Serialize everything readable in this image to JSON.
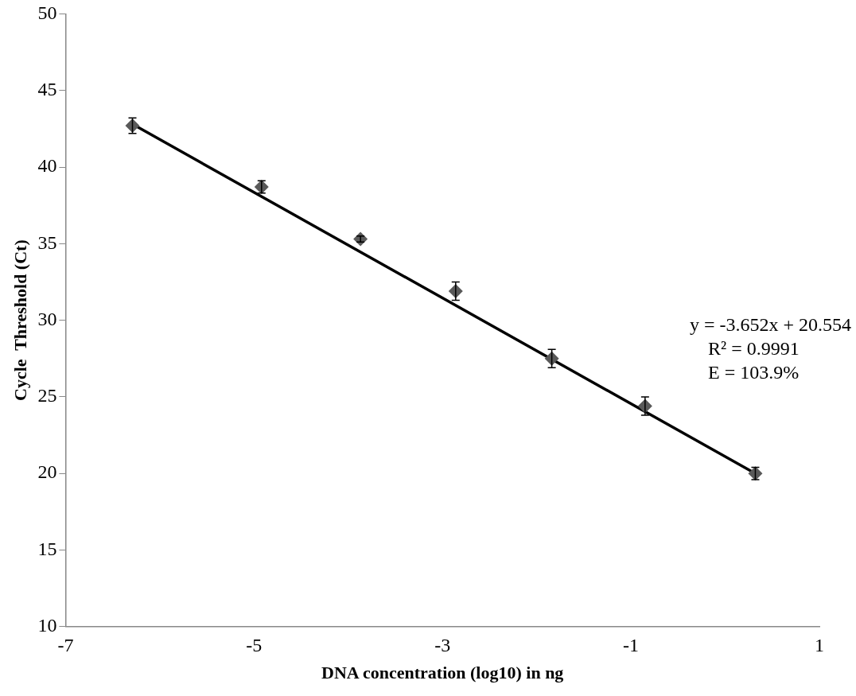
{
  "chart_data": {
    "type": "scatter",
    "xlabel": "DNA concentration (log10) in ng",
    "ylabel": "Cycle  Threshold (Ct)",
    "annotations": [
      "y = -3.652x + 20.554",
      "R² = 0.9991",
      "E = 103.9%"
    ],
    "series": [
      {
        "color": "#595959",
        "marker": "diamond",
        "x": [
          -6.29,
          -4.92,
          -3.87,
          -2.86,
          -1.84,
          -0.85,
          0.32
        ],
        "values": [
          42.7,
          38.7,
          35.3,
          31.9,
          27.5,
          24.4,
          20.0
        ],
        "errors": [
          0.5,
          0.4,
          0.2,
          0.6,
          0.6,
          0.6,
          0.4
        ]
      },
      {
        "type": "line",
        "color": "#000000",
        "x": [
          -6.29,
          0.32
        ],
        "values": [
          42.8,
          20.0
        ]
      }
    ],
    "xlim": [
      -7,
      1
    ],
    "xticks": [
      -7,
      -5,
      -3,
      -1,
      1
    ],
    "ylim": [
      10,
      50
    ],
    "yticks": [
      10,
      15,
      20,
      25,
      30,
      35,
      40,
      45,
      50
    ],
    "grid": false,
    "legend": false
  }
}
